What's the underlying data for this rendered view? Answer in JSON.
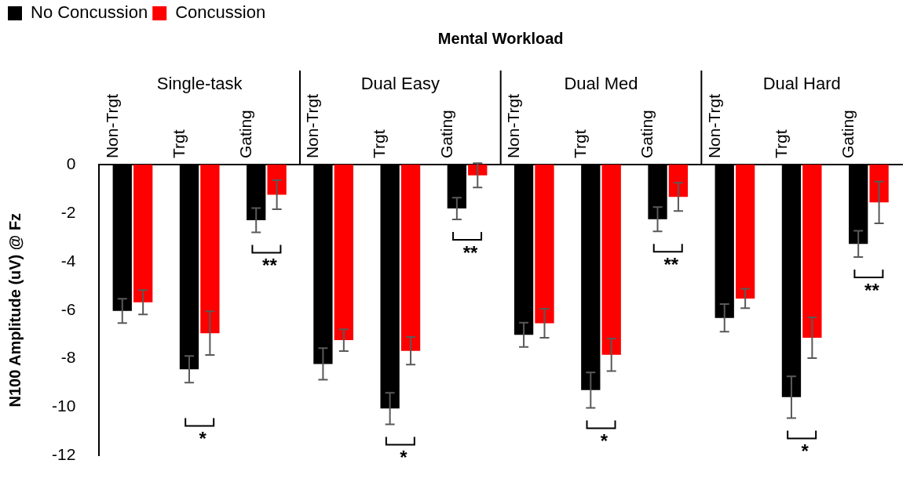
{
  "chart_data": {
    "type": "bar",
    "xlabel": "Mental Workload",
    "ylabel": "N100 Amplitude (uV) @ Fz",
    "categories": [
      "Non-Trgt",
      "Trgt",
      "Gating",
      "Non-Trgt",
      "Trgt",
      "Gating",
      "Non-Trgt",
      "Trgt",
      "Gating",
      "Non-Trgt",
      "Trgt",
      "Gating"
    ],
    "series": [
      {
        "name": "No Concussion",
        "color": "#000000",
        "values": [
          -6.03,
          -8.44,
          -2.29,
          -8.22,
          -10.06,
          -1.81,
          -7.02,
          -9.3,
          -2.25,
          -6.32,
          -9.59,
          -3.27
        ],
        "errors": [
          0.5,
          0.55,
          0.5,
          0.65,
          0.65,
          0.45,
          0.5,
          0.73,
          0.5,
          0.57,
          0.86,
          0.54
        ]
      },
      {
        "name": "Concussion",
        "color": "#ff0000",
        "values": [
          -5.68,
          -6.95,
          -1.24,
          -7.24,
          -7.68,
          -0.44,
          -6.54,
          -7.84,
          -1.33,
          -5.52,
          -7.14,
          -1.56
        ],
        "errors": [
          0.5,
          0.9,
          0.6,
          0.45,
          0.57,
          0.5,
          0.6,
          0.67,
          0.58,
          0.4,
          0.84,
          0.86
        ]
      }
    ],
    "ylim": [
      -12,
      0
    ],
    "yticks": [
      -12,
      -10,
      -8,
      -6,
      -4,
      -2,
      0
    ],
    "grid": false,
    "legend": "top left",
    "annotations": [
      "Single-task",
      "Dual Easy",
      "Dual Med",
      "Dual Hard",
      "**",
      "*",
      "**",
      "*",
      "**",
      "*",
      "**",
      "*"
    ]
  }
}
